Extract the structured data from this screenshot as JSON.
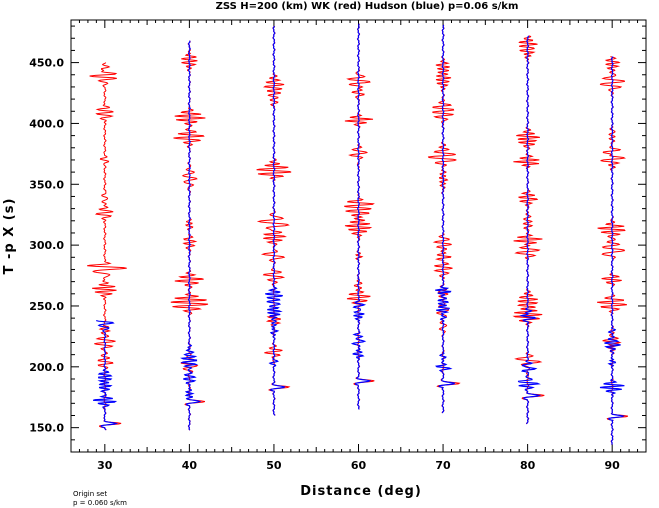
{
  "chart_data": {
    "type": "line",
    "title": "ZSS H=200 (km) WK (red) Hudson (blue) p=0.06 s/km",
    "xlabel": "Distance (deg)",
    "ylabel": "T -p X (s)",
    "xlim": [
      26,
      94
    ],
    "ylim": [
      130,
      485
    ],
    "x_ticks": [
      30,
      40,
      50,
      60,
      70,
      80,
      90
    ],
    "x_tick_labels": [
      "30",
      "40",
      "50",
      "60",
      "70",
      "80",
      "90"
    ],
    "y_ticks": [
      150,
      200,
      250,
      300,
      350,
      400,
      450
    ],
    "y_tick_labels": [
      "150.0",
      "200.0",
      "250.0",
      "300.0",
      "350.0",
      "400.0",
      "450.0"
    ],
    "grid": false,
    "series": [
      {
        "name": "WK",
        "color": "#ff0000"
      },
      {
        "name": "Hudson",
        "color": "#0000ff"
      }
    ],
    "traces": [
      {
        "distance": 30,
        "t_start": 148,
        "t_end": 450,
        "first_arrival": 152,
        "blue_end": 238
      },
      {
        "distance": 40,
        "t_start": 148,
        "t_end": 468,
        "first_arrival": 170,
        "blue_end": 468
      },
      {
        "distance": 50,
        "t_start": 160,
        "t_end": 480,
        "first_arrival": 182,
        "blue_end": 480
      },
      {
        "distance": 60,
        "t_start": 165,
        "t_end": 482,
        "first_arrival": 187,
        "blue_end": 482
      },
      {
        "distance": 70,
        "t_start": 162,
        "t_end": 481,
        "first_arrival": 185,
        "blue_end": 481
      },
      {
        "distance": 80,
        "t_start": 153,
        "t_end": 472,
        "first_arrival": 175,
        "blue_end": 472
      },
      {
        "distance": 90,
        "t_start": 136,
        "t_end": 455,
        "first_arrival": 158,
        "blue_end": 455
      }
    ],
    "footnote": [
      "Origin set",
      "p = 0.060 s/km"
    ]
  }
}
